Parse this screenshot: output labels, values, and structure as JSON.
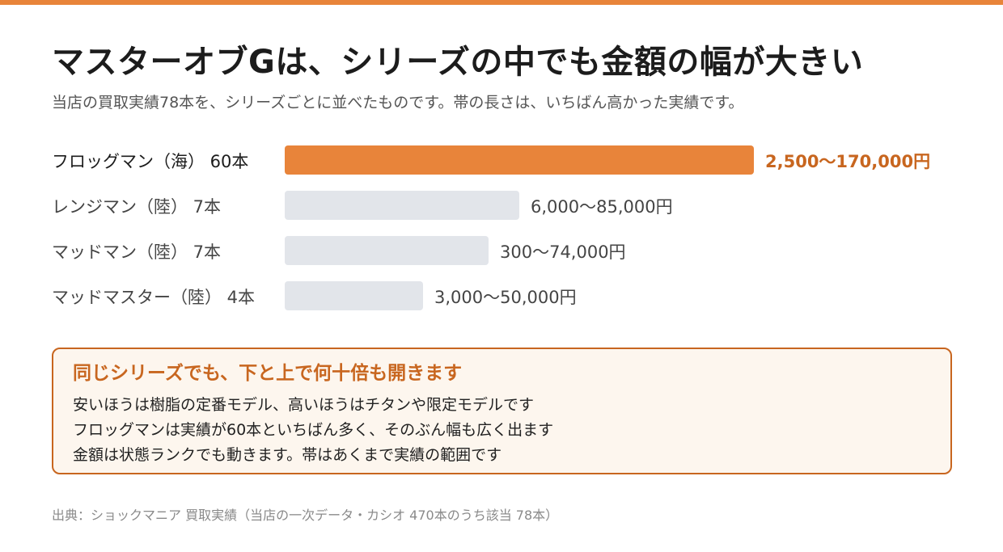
{
  "colors": {
    "accent": "#e8843a",
    "accent_dark": "#c8661f",
    "bar_muted": "#e2e5ea",
    "note_bg": "#fdf6ee"
  },
  "title": "マスターオブGは、シリーズの中でも金額の幅が大きい",
  "subtitle": "当店の買取実績78本を、シリーズごとに並べたものです。帯の長さは、いちばん高かった実績です。",
  "chart_data": {
    "type": "bar",
    "orientation": "horizontal",
    "categories": [
      "フロッグマン（海） 60本",
      "レンジマン（陸） 7本",
      "マッドマン（陸） 7本",
      "マッドマスター（陸） 4本"
    ],
    "range_labels": [
      "2,500〜170,000円",
      "6,000〜85,000円",
      "300〜74,000円",
      "3,000〜50,000円"
    ],
    "min_values": [
      2500,
      6000,
      300,
      3000
    ],
    "values": [
      170000,
      85000,
      74000,
      50000
    ],
    "counts": [
      60,
      7,
      7,
      4
    ],
    "highlight_index": 0,
    "xlim": [
      0,
      170000
    ],
    "grid": false
  },
  "note": {
    "heading": "同じシリーズでも、下と上で何十倍も開きます",
    "lines": [
      "安いほうは樹脂の定番モデル、高いほうはチタンや限定モデルです",
      "フロッグマンは実績が60本といちばん多く、そのぶん幅も広く出ます",
      "金額は状態ランクでも動きます。帯はあくまで実績の範囲です"
    ]
  },
  "source": "出典：ショックマニア 買取実績（当店の一次データ・カシオ 470本のうち該当 78本）"
}
